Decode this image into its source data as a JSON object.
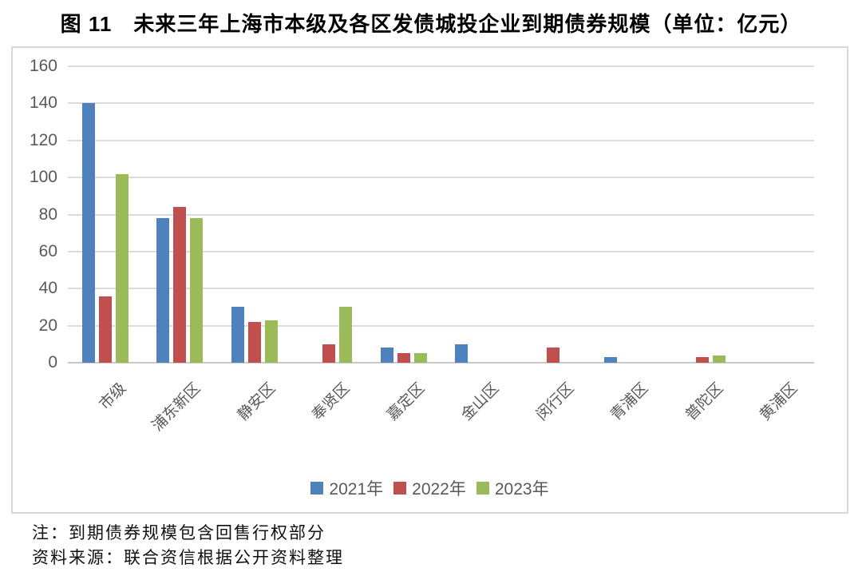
{
  "title": "图 11　未来三年上海市本级及各区发债城投企业到期债券规模（单位：亿元）",
  "notes": {
    "note1": "注：到期债券规模包含回售行权部分",
    "note2": "资料来源：联合资信根据公开资料整理"
  },
  "chart_data": {
    "type": "bar",
    "title": "未来三年上海市本级及各区发债城投企业到期债券规模",
    "unit": "亿元",
    "categories": [
      "市级",
      "浦东新区",
      "静安区",
      "奉贤区",
      "嘉定区",
      "金山区",
      "闵行区",
      "青浦区",
      "普陀区",
      "黄浦区"
    ],
    "series": [
      {
        "name": "2021年",
        "color": "#4F81BD",
        "values": [
          140,
          78,
          30,
          0,
          8,
          10,
          0,
          3,
          0,
          0
        ]
      },
      {
        "name": "2022年",
        "color": "#C0504D",
        "values": [
          36,
          84,
          22,
          10,
          5,
          0,
          8,
          0,
          3,
          0
        ]
      },
      {
        "name": "2023年",
        "color": "#9BBB59",
        "values": [
          102,
          78,
          23,
          30,
          5,
          0,
          0,
          0,
          4,
          0
        ]
      }
    ],
    "ylim": [
      0,
      160
    ],
    "y_ticks": [
      0,
      20,
      40,
      60,
      80,
      100,
      120,
      140,
      160
    ],
    "grid": true,
    "legend_position": "bottom"
  },
  "colors": {
    "gridline": "#dcdcdc",
    "axis_text": "#595959",
    "panel_border": "#d9d9d9"
  }
}
